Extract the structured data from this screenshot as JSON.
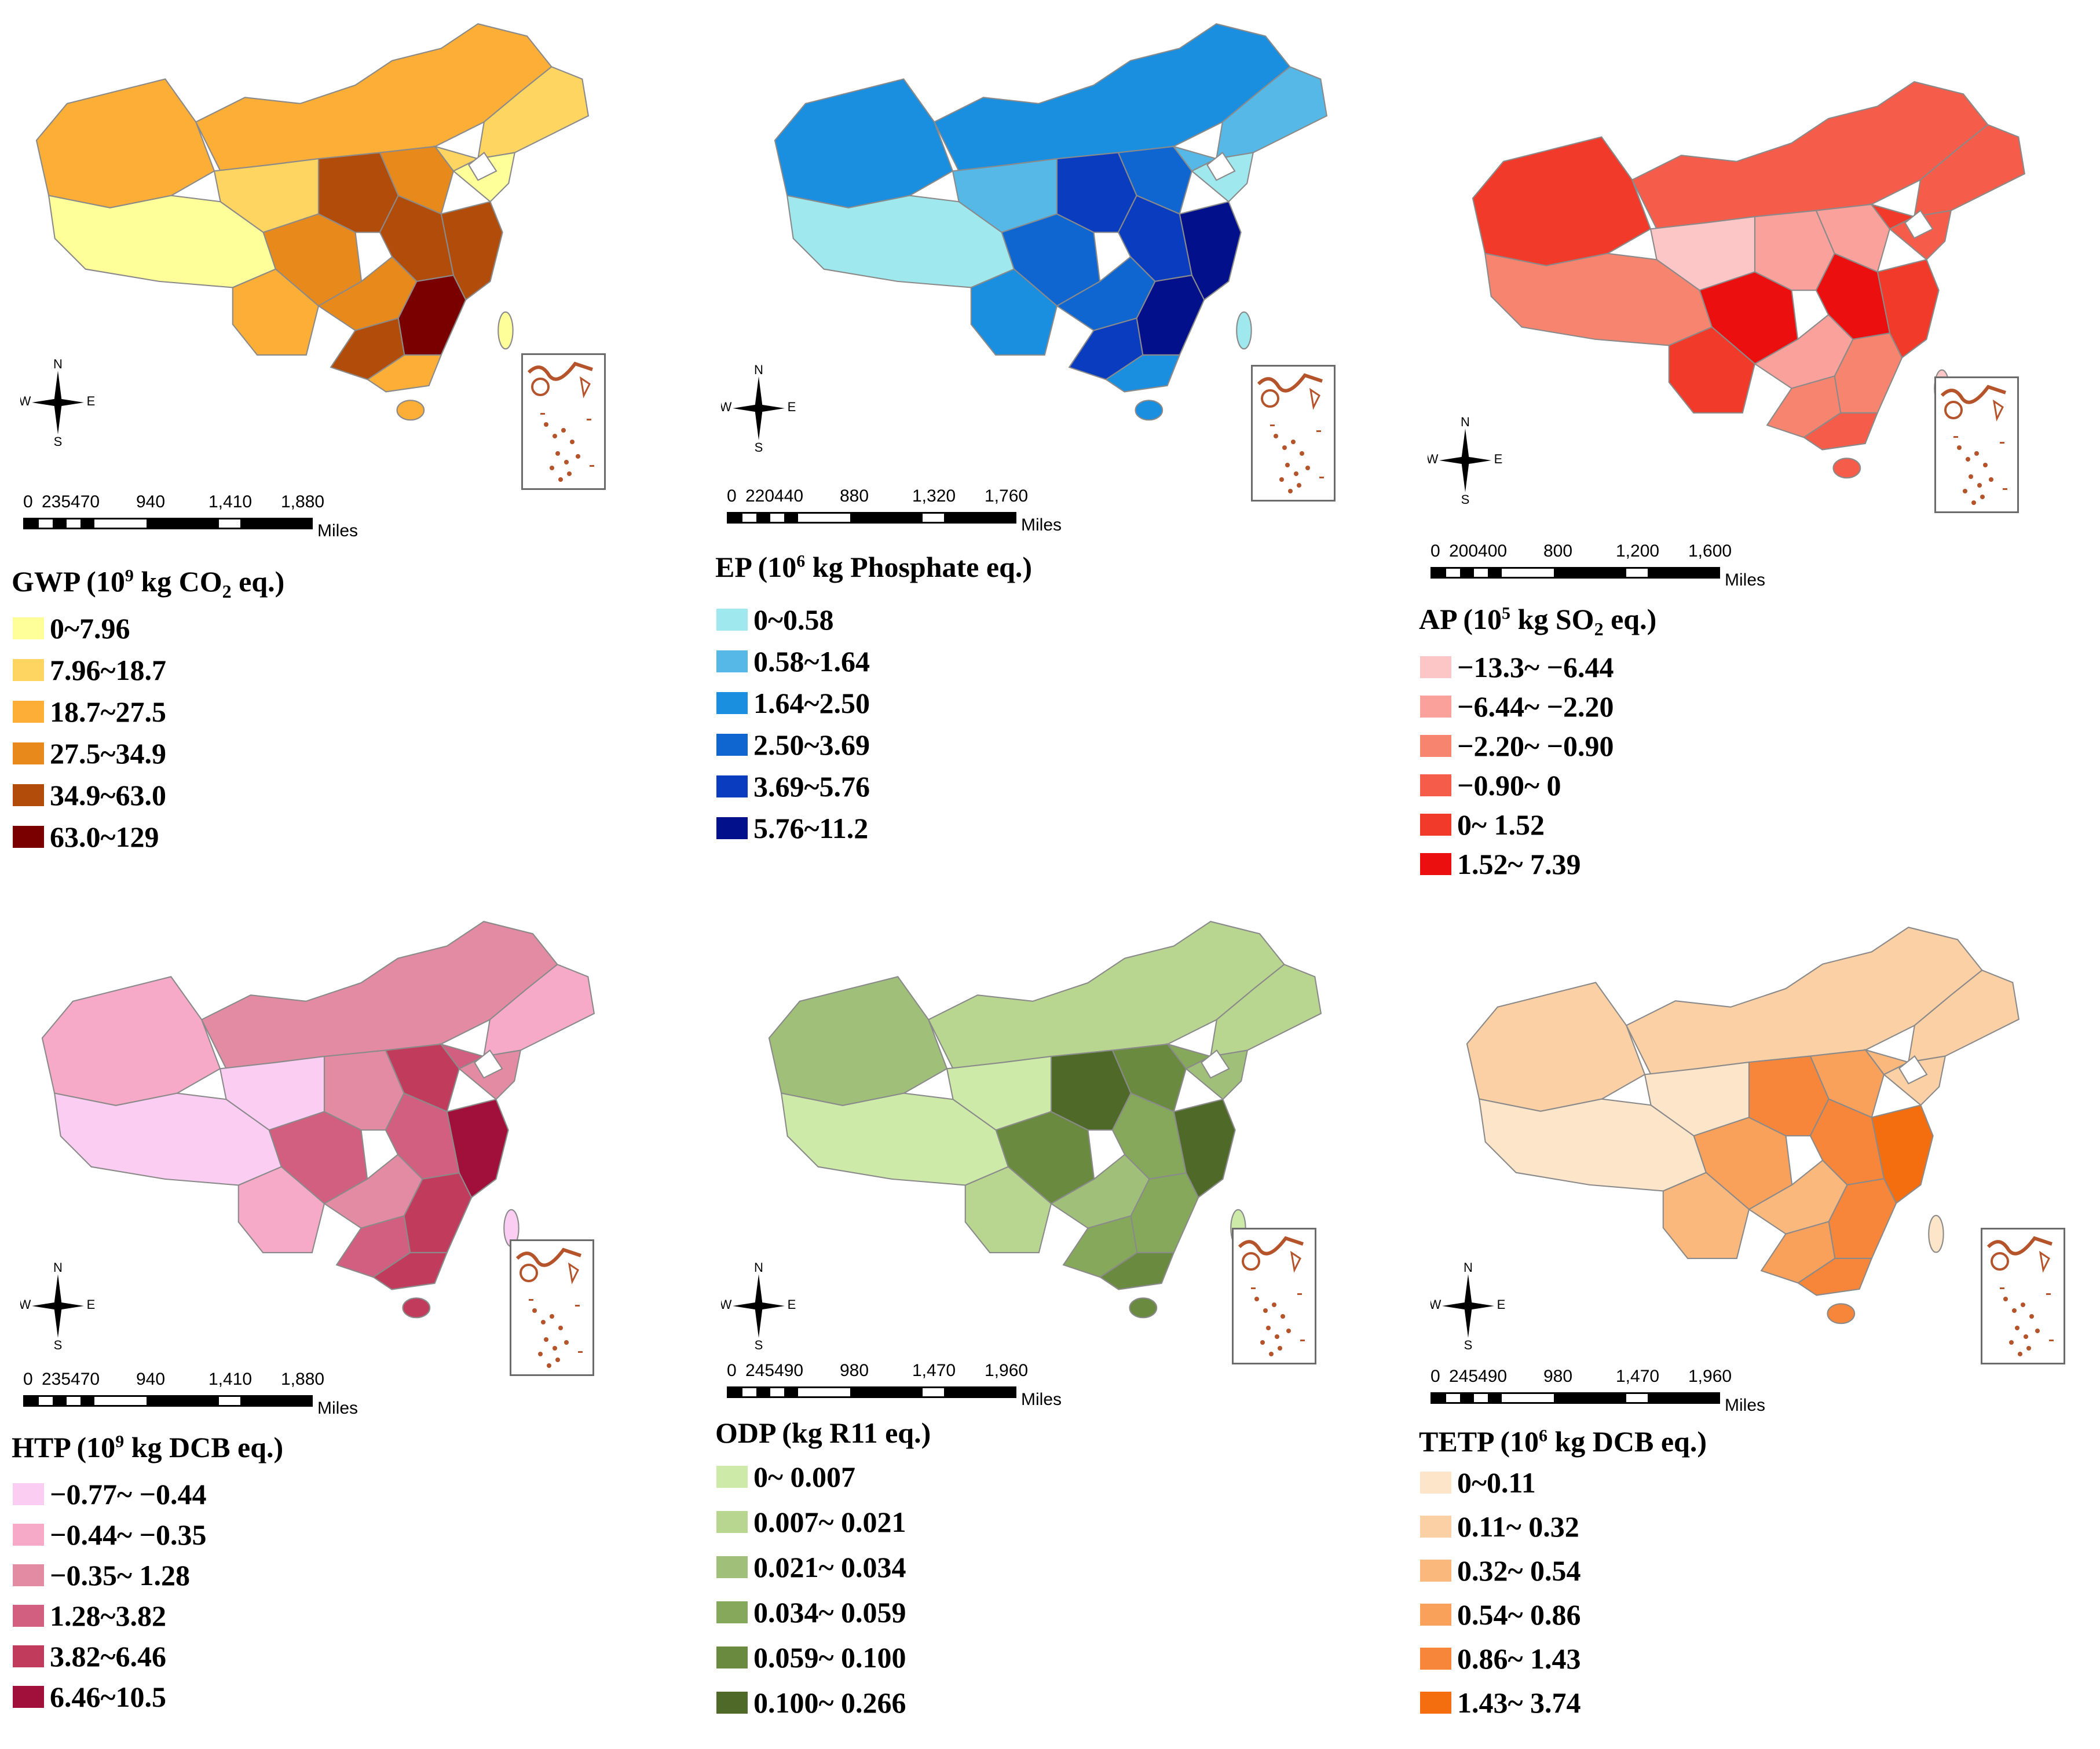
{
  "compass": {
    "n": "N",
    "s": "S",
    "e": "E",
    "w": "W"
  },
  "scale_unit": "Miles",
  "panels": [
    {
      "id": "gwp",
      "title_main": "GWP (10",
      "title_sup": "9",
      "title_rest": " kg CO",
      "title_sub": "2",
      "title_end": " eq.)",
      "scale_ticks": [
        "0",
        "235470",
        "940",
        "1,410",
        "1,880"
      ],
      "legend": [
        {
          "label": "0~7.96",
          "color": "#ffff9a"
        },
        {
          "label": "7.96~18.7",
          "color": "#fed560"
        },
        {
          "label": "18.7~27.5",
          "color": "#fcae36"
        },
        {
          "label": "27.5~34.9",
          "color": "#e8891c"
        },
        {
          "label": "34.9~63.0",
          "color": "#b14c0a"
        },
        {
          "label": "63.0~129",
          "color": "#7a0000"
        }
      ]
    },
    {
      "id": "ep",
      "title_main": "EP (10",
      "title_sup": "6",
      "title_rest": " kg Phosphate eq.)",
      "title_sub": "",
      "title_end": "",
      "scale_ticks": [
        "0",
        "220440",
        "880",
        "1,320",
        "1,760"
      ],
      "legend": [
        {
          "label": "0~0.58",
          "color": "#9ee8ee"
        },
        {
          "label": "0.58~1.64",
          "color": "#56b8e6"
        },
        {
          "label": "1.64~2.50",
          "color": "#1a8fe0"
        },
        {
          "label": "2.50~3.69",
          "color": "#0f66d0"
        },
        {
          "label": "3.69~5.76",
          "color": "#0a3cbf"
        },
        {
          "label": "5.76~11.2",
          "color": "#02108c"
        }
      ]
    },
    {
      "id": "ap",
      "title_main": "AP (10",
      "title_sup": "5",
      "title_rest": " kg SO",
      "title_sub": "2",
      "title_end": " eq.)",
      "scale_ticks": [
        "0",
        "200400",
        "800",
        "1,200",
        "1,600"
      ],
      "legend": [
        {
          "label": "−13.3~ −6.44",
          "color": "#fcc6c6"
        },
        {
          "label": "−6.44~ −2.20",
          "color": "#f9a19a"
        },
        {
          "label": "−2.20~ −0.90",
          "color": "#f7846f"
        },
        {
          "label": "−0.90~ 0",
          "color": "#f65c4a"
        },
        {
          "label": "0~ 1.52",
          "color": "#f23a2a"
        },
        {
          "label": "1.52~ 7.39",
          "color": "#ec0f0f"
        }
      ]
    },
    {
      "id": "htp",
      "title_main": "HTP (10",
      "title_sup": "9",
      "title_rest": " kg DCB eq.)",
      "title_sub": "",
      "title_end": "",
      "scale_ticks": [
        "0",
        "235470",
        "940",
        "1,410",
        "1,880"
      ],
      "legend": [
        {
          "label": "−0.77~ −0.44",
          "color": "#fccdf2"
        },
        {
          "label": "−0.44~ −0.35",
          "color": "#f6aac8"
        },
        {
          "label": "−0.35~ 1.28",
          "color": "#e48ba4"
        },
        {
          "label": "1.28~3.82",
          "color": "#d25f80"
        },
        {
          "label": "3.82~6.46",
          "color": "#c13c5c"
        },
        {
          "label": "6.46~10.5",
          "color": "#a0103a"
        }
      ]
    },
    {
      "id": "odp",
      "title_main": "ODP (kg R11 eq.)",
      "title_sup": "",
      "title_rest": "",
      "title_sub": "",
      "title_end": "",
      "scale_ticks": [
        "0",
        "245490",
        "980",
        "1,470",
        "1,960"
      ],
      "legend": [
        {
          "label": "0~ 0.007",
          "color": "#cdeaa8"
        },
        {
          "label": "0.007~ 0.021",
          "color": "#b8d690"
        },
        {
          "label": "0.021~ 0.034",
          "color": "#a0c07a"
        },
        {
          "label": "0.034~ 0.059",
          "color": "#86a85a"
        },
        {
          "label": "0.059~ 0.100",
          "color": "#6a8a40"
        },
        {
          "label": "0.100~ 0.266",
          "color": "#4f6a28"
        }
      ]
    },
    {
      "id": "tetp",
      "title_main": "TETP (10",
      "title_sup": "6",
      "title_rest": " kg DCB eq.)",
      "title_sub": "",
      "title_end": "",
      "scale_ticks": [
        "0",
        "245490",
        "980",
        "1,470",
        "1,960"
      ],
      "legend": [
        {
          "label": "0~0.11",
          "color": "#fde5c9"
        },
        {
          "label": "0.11~ 0.32",
          "color": "#fcd0a5"
        },
        {
          "label": "0.32~ 0.54",
          "color": "#fbb87c"
        },
        {
          "label": "0.54~ 0.86",
          "color": "#f9a05a"
        },
        {
          "label": "0.86~ 1.43",
          "color": "#f7863a"
        },
        {
          "label": "1.43~ 3.74",
          "color": "#f46e10"
        }
      ]
    }
  ]
}
